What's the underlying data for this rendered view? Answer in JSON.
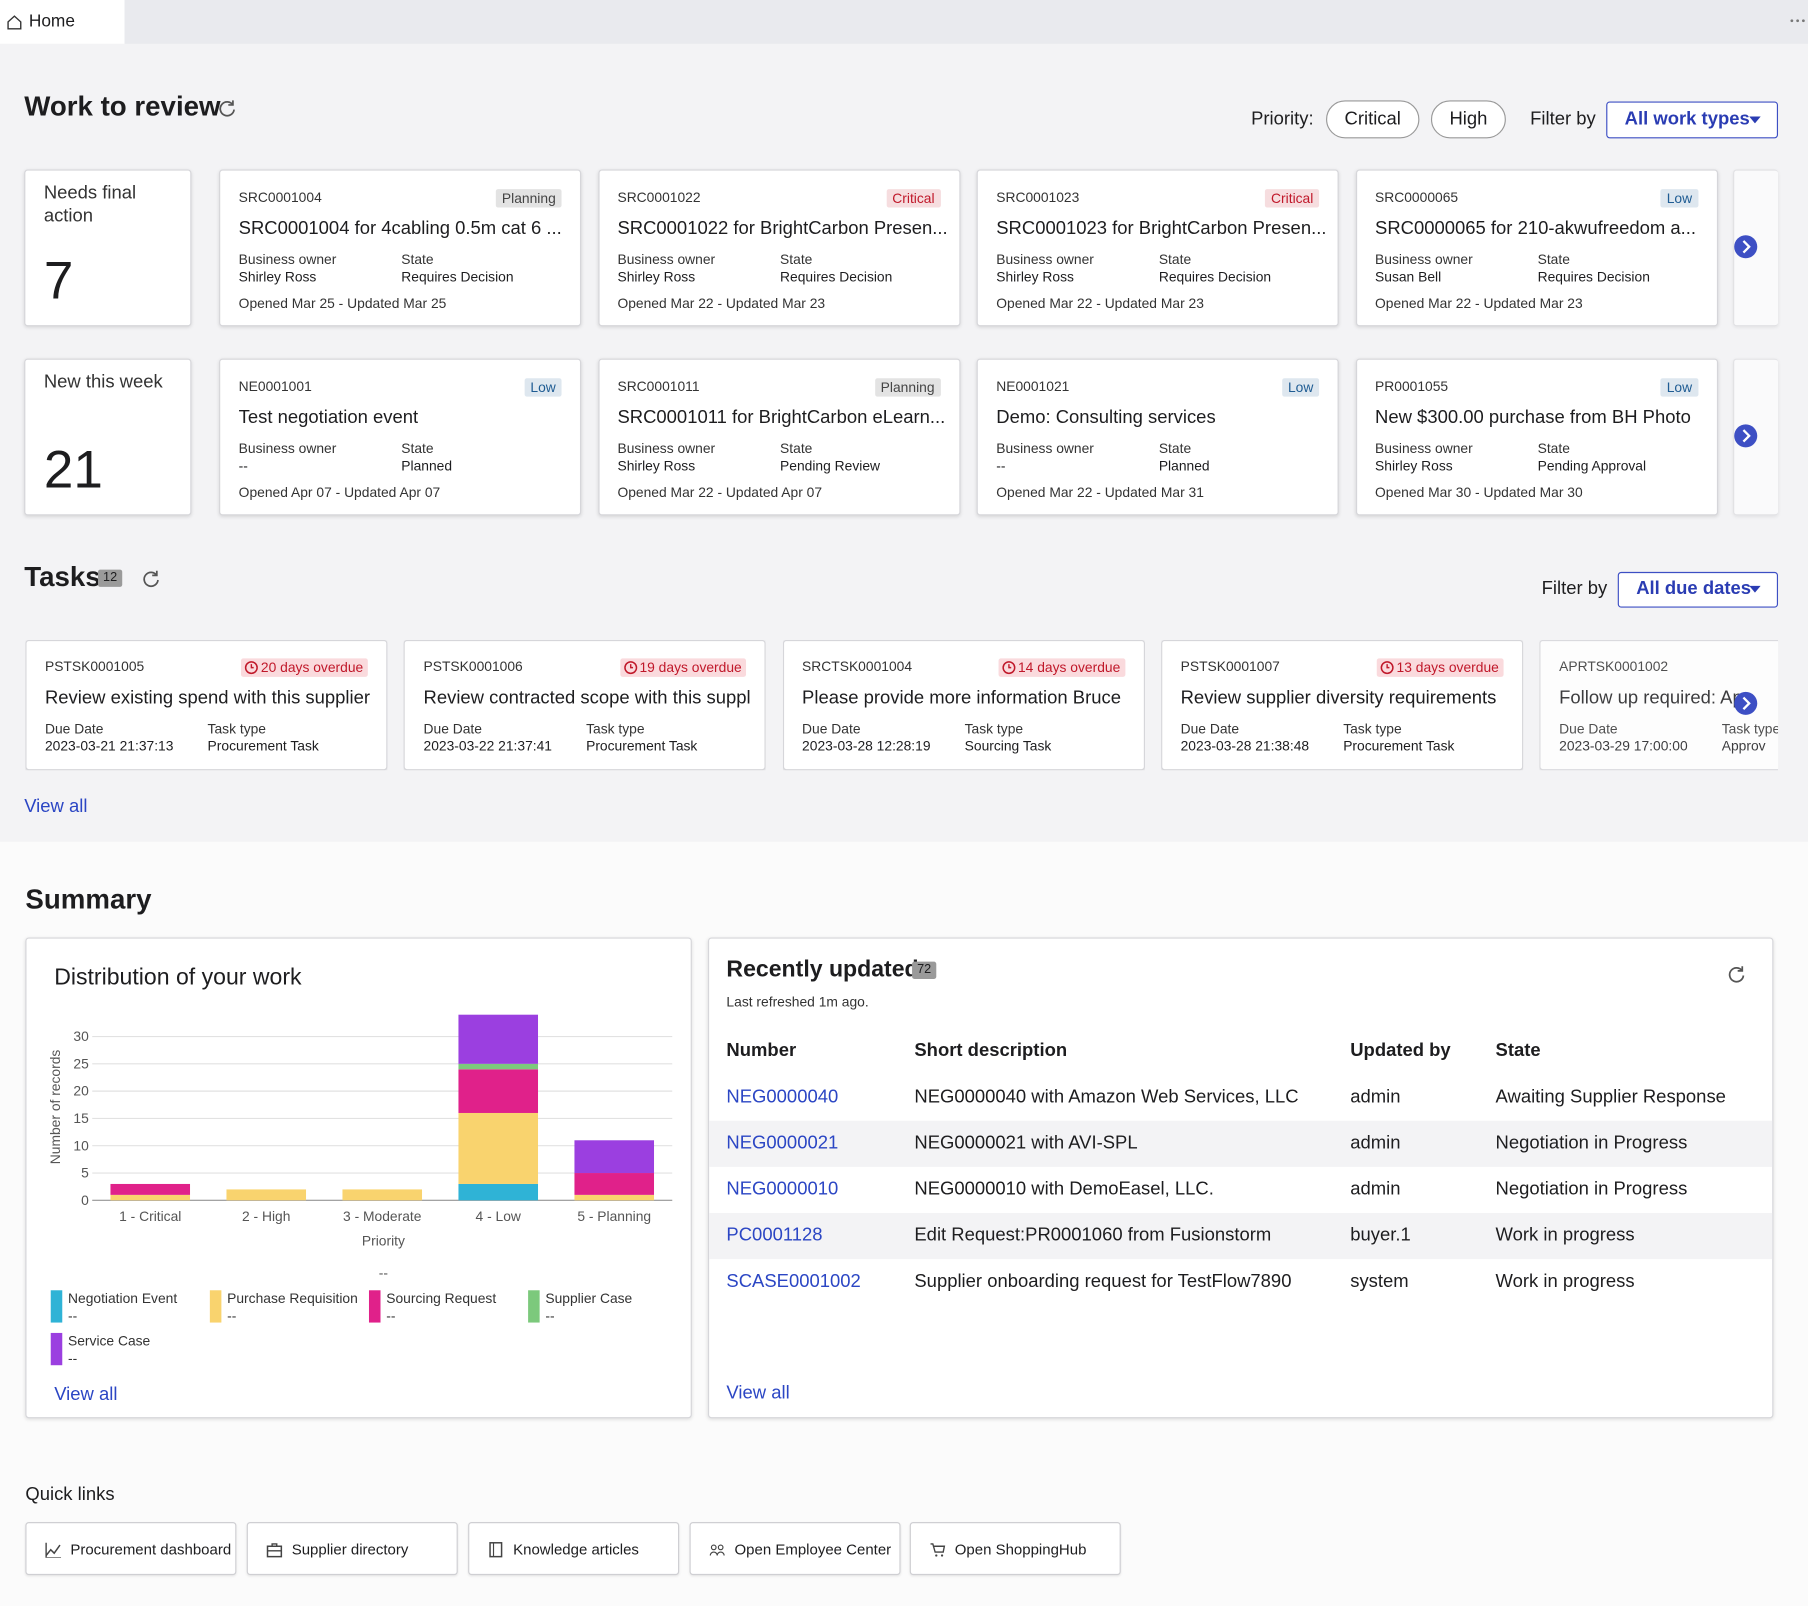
{
  "tab": "Home",
  "work_review": {
    "title": "Work to review",
    "priority_label": "Priority:",
    "priority_filters": [
      "Critical",
      "High"
    ],
    "filter_label": "Filter by",
    "filter_value": "All work types",
    "owner_label": "Business owner",
    "state_label": "State",
    "rows": [
      {
        "label": "Needs final action",
        "count": 7,
        "cards": [
          {
            "number": "SRC0001004",
            "badge": "Planning",
            "badge_color": "#444444",
            "title": "SRC0001004 for 4cabling 0.5m cat 6 ...",
            "owner": "Shirley Ross",
            "state": "Requires Decision",
            "dates": "Opened Mar 25 - Updated Mar 25"
          },
          {
            "number": "SRC0001022",
            "badge": "Critical",
            "badge_color": "#c0182a",
            "title": "SRC0001022 for BrightCarbon Presen...",
            "owner": "Shirley Ross",
            "state": "Requires Decision",
            "dates": "Opened Mar 22 - Updated Mar 23"
          },
          {
            "number": "SRC0001023",
            "badge": "Critical",
            "badge_color": "#c0182a",
            "title": "SRC0001023 for BrightCarbon Presen...",
            "owner": "Shirley Ross",
            "state": "Requires Decision",
            "dates": "Opened Mar 22 - Updated Mar 23"
          },
          {
            "number": "SRC0000065",
            "badge": "Low",
            "badge_color": "#1f5c93",
            "title": "SRC0000065 for 210-akwufreedom a...",
            "owner": "Susan Bell",
            "state": "Requires Decision",
            "dates": "Opened Mar 22 - Updated Mar 23"
          }
        ]
      },
      {
        "label": "New this week",
        "count": 21,
        "cards": [
          {
            "number": "NE0001001",
            "badge": "Low",
            "badge_color": "#1f5c93",
            "title": "Test negotiation event",
            "owner": "--",
            "state": "Planned",
            "dates": "Opened Apr 07 - Updated Apr 07"
          },
          {
            "number": "SRC0001011",
            "badge": "Planning",
            "badge_color": "#444444",
            "title": "SRC0001011 for BrightCarbon eLearn...",
            "owner": "Shirley Ross",
            "state": "Pending Review",
            "dates": "Opened Mar 22 - Updated Apr 07"
          },
          {
            "number": "NE0001021",
            "badge": "Low",
            "badge_color": "#1f5c93",
            "title": "Demo: Consulting services",
            "owner": "--",
            "state": "Planned",
            "dates": "Opened Mar 22 - Updated Mar 31"
          },
          {
            "number": "PR0001055",
            "badge": "Low",
            "badge_color": "#1f5c93",
            "title": "New $300.00 purchase from BH Photo",
            "owner": "Shirley Ross",
            "state": "Pending Approval",
            "dates": "Opened Mar 30 - Updated Mar 30"
          }
        ]
      }
    ]
  },
  "tasks": {
    "title": "Tasks",
    "count": 12,
    "filter_label": "Filter by",
    "filter_value": "All due dates",
    "due_label": "Due Date",
    "type_label": "Task type",
    "view_all": "View all",
    "cards": [
      {
        "number": "PSTSK0001005",
        "overdue": "20 days overdue",
        "title": "Review existing spend with this supplier",
        "due": "2023-03-21 21:37:13",
        "type": "Procurement Task"
      },
      {
        "number": "PSTSK0001006",
        "overdue": "19 days overdue",
        "title": "Review contracted scope with this suppl",
        "due": "2023-03-22 21:37:41",
        "type": "Procurement Task"
      },
      {
        "number": "SRCTSK0001004",
        "overdue": "14 days overdue",
        "title": "Please provide more information Bruce",
        "due": "2023-03-28 12:28:19",
        "type": "Sourcing Task"
      },
      {
        "number": "PSTSK0001007",
        "overdue": "13 days overdue",
        "title": "Review supplier diversity requirements",
        "due": "2023-03-28 21:38:48",
        "type": "Procurement Task"
      },
      {
        "number": "APRTSK0001002",
        "title": "Follow up required: Ap",
        "due": "2023-03-29 17:00:00",
        "type": "Approv"
      }
    ]
  },
  "summary": {
    "title": "Summary",
    "view_all": "View all"
  },
  "chart_data": {
    "type": "bar",
    "stacked": true,
    "title": "Distribution of your work",
    "xlabel": "Priority",
    "ylabel": "Number of records",
    "legend_title": "--",
    "categories": [
      "1 - Critical",
      "2 - High",
      "3 - Moderate",
      "4 - Low",
      "5 - Planning"
    ],
    "series": [
      {
        "name": "Negotiation Event",
        "color": "#2fb3d6",
        "detail": "--",
        "values": [
          0,
          0,
          0,
          3,
          0
        ]
      },
      {
        "name": "Purchase Requisition",
        "color": "#f9d36e",
        "detail": "--",
        "values": [
          1,
          2,
          2,
          13,
          1
        ]
      },
      {
        "name": "Sourcing Request",
        "color": "#e0218a",
        "detail": "--",
        "values": [
          2,
          0,
          0,
          8,
          4
        ]
      },
      {
        "name": "Supplier Case",
        "color": "#7cc97c",
        "detail": "--",
        "values": [
          0,
          0,
          0,
          1,
          0
        ]
      },
      {
        "name": "Service Case",
        "color": "#9b3fe0",
        "detail": "--",
        "values": [
          0,
          0,
          0,
          9,
          6
        ]
      }
    ],
    "ylim": [
      0,
      34
    ],
    "yticks": [
      0,
      5,
      10,
      15,
      20,
      25,
      30
    ],
    "grid": true
  },
  "recent": {
    "title": "Recently updated",
    "count": 72,
    "refreshed": "Last refreshed 1m ago.",
    "view_all": "View all",
    "columns": [
      "Number",
      "Short description",
      "Updated by",
      "State"
    ],
    "rows": [
      [
        "NEG0000040",
        "NEG0000040 with Amazon Web Services, LLC",
        "admin",
        "Awaiting Supplier Response"
      ],
      [
        "NEG0000021",
        "NEG0000021 with AVI-SPL",
        "admin",
        "Negotiation in Progress"
      ],
      [
        "NEG0000010",
        "NEG0000010 with DemoEasel, LLC.",
        "admin",
        "Negotiation in Progress"
      ],
      [
        "PC0001128",
        "Edit Request:PR0001060 from Fusionstorm",
        "buyer.1",
        "Work in progress"
      ],
      [
        "SCASE0001002",
        "Supplier onboarding request for TestFlow7890",
        "system",
        "Work in progress"
      ]
    ]
  },
  "quick_links": {
    "title": "Quick links",
    "links": [
      "Procurement dashboard",
      "Supplier directory",
      "Knowledge articles",
      "Open Employee Center",
      "Open ShoppingHub"
    ]
  }
}
